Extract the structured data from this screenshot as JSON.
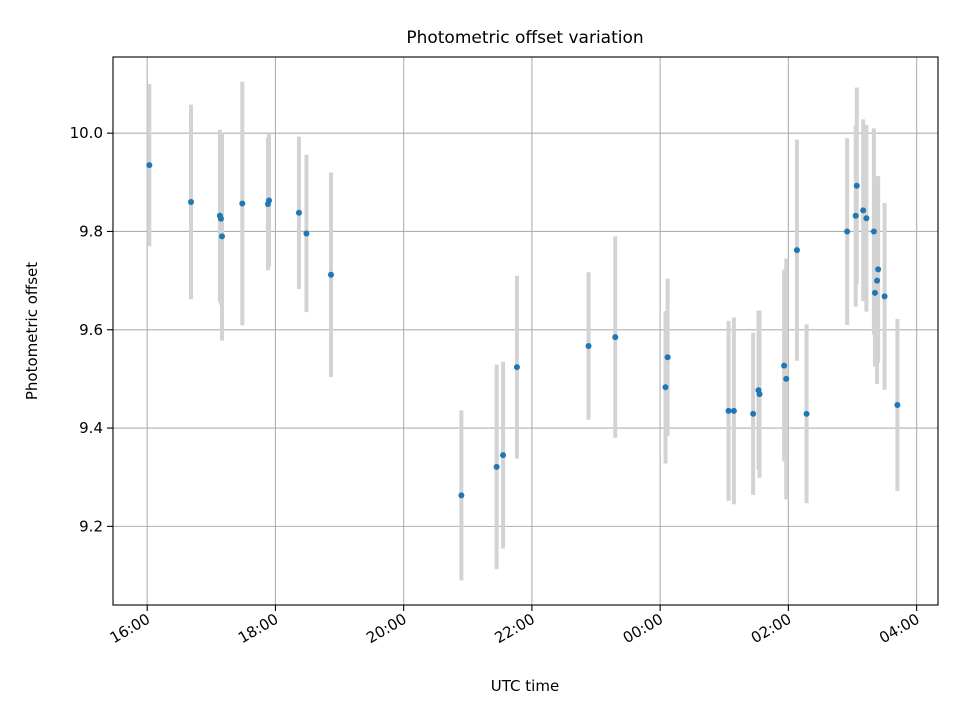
{
  "chart_data": {
    "type": "scatter",
    "title": "Photometric offset variation",
    "xlabel": "UTC time",
    "ylabel": "Photometric offset",
    "x_tick_labels": [
      "16:00",
      "18:00",
      "20:00",
      "22:00",
      "00:00",
      "02:00",
      "04:00"
    ],
    "x_ticks": [
      "16:00",
      "18:00",
      "20:00",
      "22:00",
      "24:00",
      "26:00",
      "28:00"
    ],
    "xlim": [
      "15:28",
      "28:20"
    ],
    "y_ticks": [
      9.2,
      9.4,
      9.6,
      9.8,
      10.0
    ],
    "y_tick_labels": [
      "9.2",
      "9.4",
      "9.6",
      "9.8",
      "10.0"
    ],
    "ylim": [
      9.04,
      10.155
    ],
    "grid": true,
    "marker_color": "#1f77b4",
    "errorbar_color": "#d3d3d3",
    "points": [
      {
        "x": "16:02",
        "y": 9.935,
        "err": 0.165
      },
      {
        "x": "16:41",
        "y": 9.86,
        "err": 0.198
      },
      {
        "x": "17:08",
        "y": 9.832,
        "err": 0.175
      },
      {
        "x": "17:09",
        "y": 9.826,
        "err": 0.175
      },
      {
        "x": "17:10",
        "y": 9.79,
        "err": 0.212
      },
      {
        "x": "17:29",
        "y": 9.857,
        "err": 0.248
      },
      {
        "x": "17:53",
        "y": 9.856,
        "err": 0.135
      },
      {
        "x": "17:54",
        "y": 9.863,
        "err": 0.135
      },
      {
        "x": "18:22",
        "y": 9.838,
        "err": 0.155
      },
      {
        "x": "18:29",
        "y": 9.796,
        "err": 0.16
      },
      {
        "x": "18:52",
        "y": 9.712,
        "err": 0.208
      },
      {
        "x": "20:54",
        "y": 9.263,
        "err": 0.173
      },
      {
        "x": "21:27",
        "y": 9.321,
        "err": 0.208
      },
      {
        "x": "21:33",
        "y": 9.345,
        "err": 0.19
      },
      {
        "x": "21:46",
        "y": 9.524,
        "err": 0.186
      },
      {
        "x": "22:53",
        "y": 9.567,
        "err": 0.15
      },
      {
        "x": "23:18",
        "y": 9.585,
        "err": 0.205
      },
      {
        "x": "00:05",
        "y": 9.483,
        "err": 0.155
      },
      {
        "x": "00:07",
        "y": 9.544,
        "err": 0.16
      },
      {
        "x": "01:04",
        "y": 9.435,
        "err": 0.183
      },
      {
        "x": "01:09",
        "y": 9.435,
        "err": 0.19
      },
      {
        "x": "01:27",
        "y": 9.429,
        "err": 0.165
      },
      {
        "x": "01:32",
        "y": 9.477,
        "err": 0.162
      },
      {
        "x": "01:33",
        "y": 9.469,
        "err": 0.17
      },
      {
        "x": "01:56",
        "y": 9.527,
        "err": 0.195
      },
      {
        "x": "01:58",
        "y": 9.5,
        "err": 0.245
      },
      {
        "x": "02:08",
        "y": 9.762,
        "err": 0.225
      },
      {
        "x": "02:17",
        "y": 9.429,
        "err": 0.182
      },
      {
        "x": "02:55",
        "y": 9.8,
        "err": 0.19
      },
      {
        "x": "03:03",
        "y": 9.832,
        "err": 0.185
      },
      {
        "x": "03:04",
        "y": 9.893,
        "err": 0.2
      },
      {
        "x": "03:10",
        "y": 9.843,
        "err": 0.185
      },
      {
        "x": "03:13",
        "y": 9.827,
        "err": 0.19
      },
      {
        "x": "03:20",
        "y": 9.8,
        "err": 0.21
      },
      {
        "x": "03:21",
        "y": 9.675,
        "err": 0.15
      },
      {
        "x": "03:23",
        "y": 9.7,
        "err": 0.21
      },
      {
        "x": "03:24",
        "y": 9.723,
        "err": 0.19
      },
      {
        "x": "03:30",
        "y": 9.668,
        "err": 0.19
      },
      {
        "x": "03:42",
        "y": 9.447,
        "err": 0.175
      }
    ]
  }
}
